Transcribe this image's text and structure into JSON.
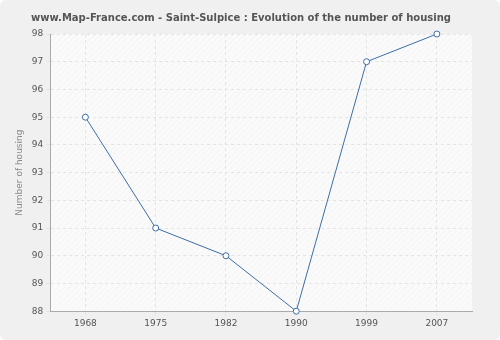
{
  "chart_data": {
    "type": "line",
    "title": "www.Map-France.com - Saint-Sulpice : Evolution of the number of housing",
    "y_label": "Number of housing",
    "categories": [
      "1968",
      "1975",
      "1982",
      "1990",
      "1999",
      "2007"
    ],
    "values": [
      95,
      91,
      90,
      88,
      97,
      98
    ],
    "color": "#3e6fa6",
    "ylim": [
      88,
      98
    ],
    "yticks": [
      88,
      89,
      90,
      91,
      92,
      93,
      94,
      95,
      96,
      97,
      98
    ],
    "grid": true,
    "marker": "circle"
  }
}
